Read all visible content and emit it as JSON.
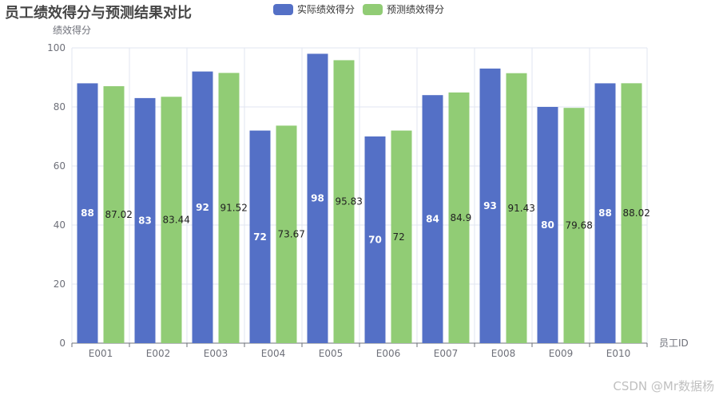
{
  "chart_data": {
    "type": "bar",
    "title": "员工绩效得分与预测结果对比",
    "xlabel": "员工ID",
    "ylabel": "绩效得分",
    "ylim": [
      0,
      100
    ],
    "yticks": [
      0,
      20,
      40,
      60,
      80,
      100
    ],
    "categories": [
      "E001",
      "E002",
      "E003",
      "E004",
      "E005",
      "E006",
      "E007",
      "E008",
      "E009",
      "E010"
    ],
    "series": [
      {
        "name": "实际绩效得分",
        "color": "#5470c6",
        "values": [
          88,
          83,
          92,
          72,
          98,
          70,
          84,
          93,
          80,
          88
        ],
        "labels": [
          "88",
          "83",
          "92",
          "72",
          "98",
          "70",
          "84",
          "93",
          "80",
          "88"
        ]
      },
      {
        "name": "预测绩效得分",
        "color": "#91cc75",
        "values": [
          87.02,
          83.44,
          91.52,
          73.67,
          95.83,
          72,
          84.9,
          91.43,
          79.68,
          88.02
        ],
        "labels": [
          "87.02",
          "83.44",
          "91.52",
          "73.67",
          "95.83",
          "72",
          "84.9",
          "91.43",
          "79.68",
          "88.02"
        ]
      }
    ],
    "grid": true,
    "legend_position": "top"
  },
  "watermark": "CSDN @Mr数据杨"
}
